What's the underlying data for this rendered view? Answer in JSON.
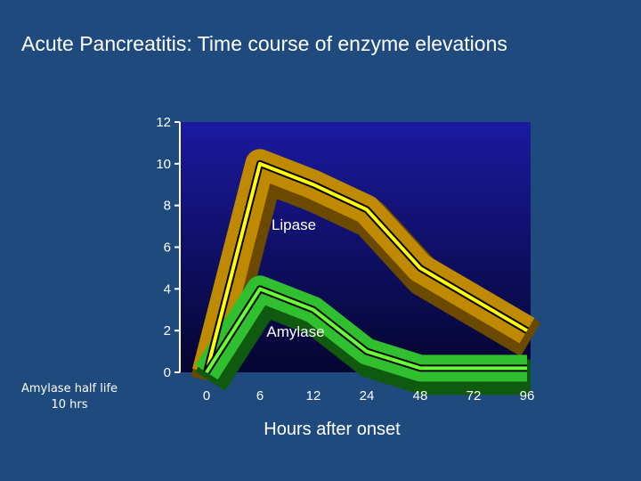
{
  "slide": {
    "title": "Acute Pancreatitis: Time course of enzyme elevations",
    "side_note": "Amylase half life 10 hrs"
  },
  "colors": {
    "background": "#1f4a7e",
    "plot_top": "#1a1aa0",
    "plot_bottom": "#050530",
    "lipase_band": "#c08a00",
    "lipase_band_dark": "#6b4a00",
    "lipase_line": "#ffff00",
    "amylase_band": "#2fbf2f",
    "amylase_band_dark": "#0f5a0f",
    "amylase_line": "#66ff33"
  },
  "chart_data": {
    "type": "line",
    "title": "",
    "xlabel": "Hours after onset",
    "ylabel": "",
    "categories": [
      "0",
      "6",
      "12",
      "24",
      "48",
      "72",
      "96"
    ],
    "ylim": [
      0,
      12
    ],
    "yticks": [
      0,
      2,
      4,
      6,
      8,
      10,
      12
    ],
    "grid": false,
    "series": [
      {
        "name": "Lipase",
        "values": [
          0,
          10,
          9,
          7.8,
          5,
          3.5,
          2
        ]
      },
      {
        "name": "Amylase",
        "values": [
          0,
          4,
          3,
          1,
          0.2,
          0.2,
          0.2
        ]
      }
    ]
  }
}
